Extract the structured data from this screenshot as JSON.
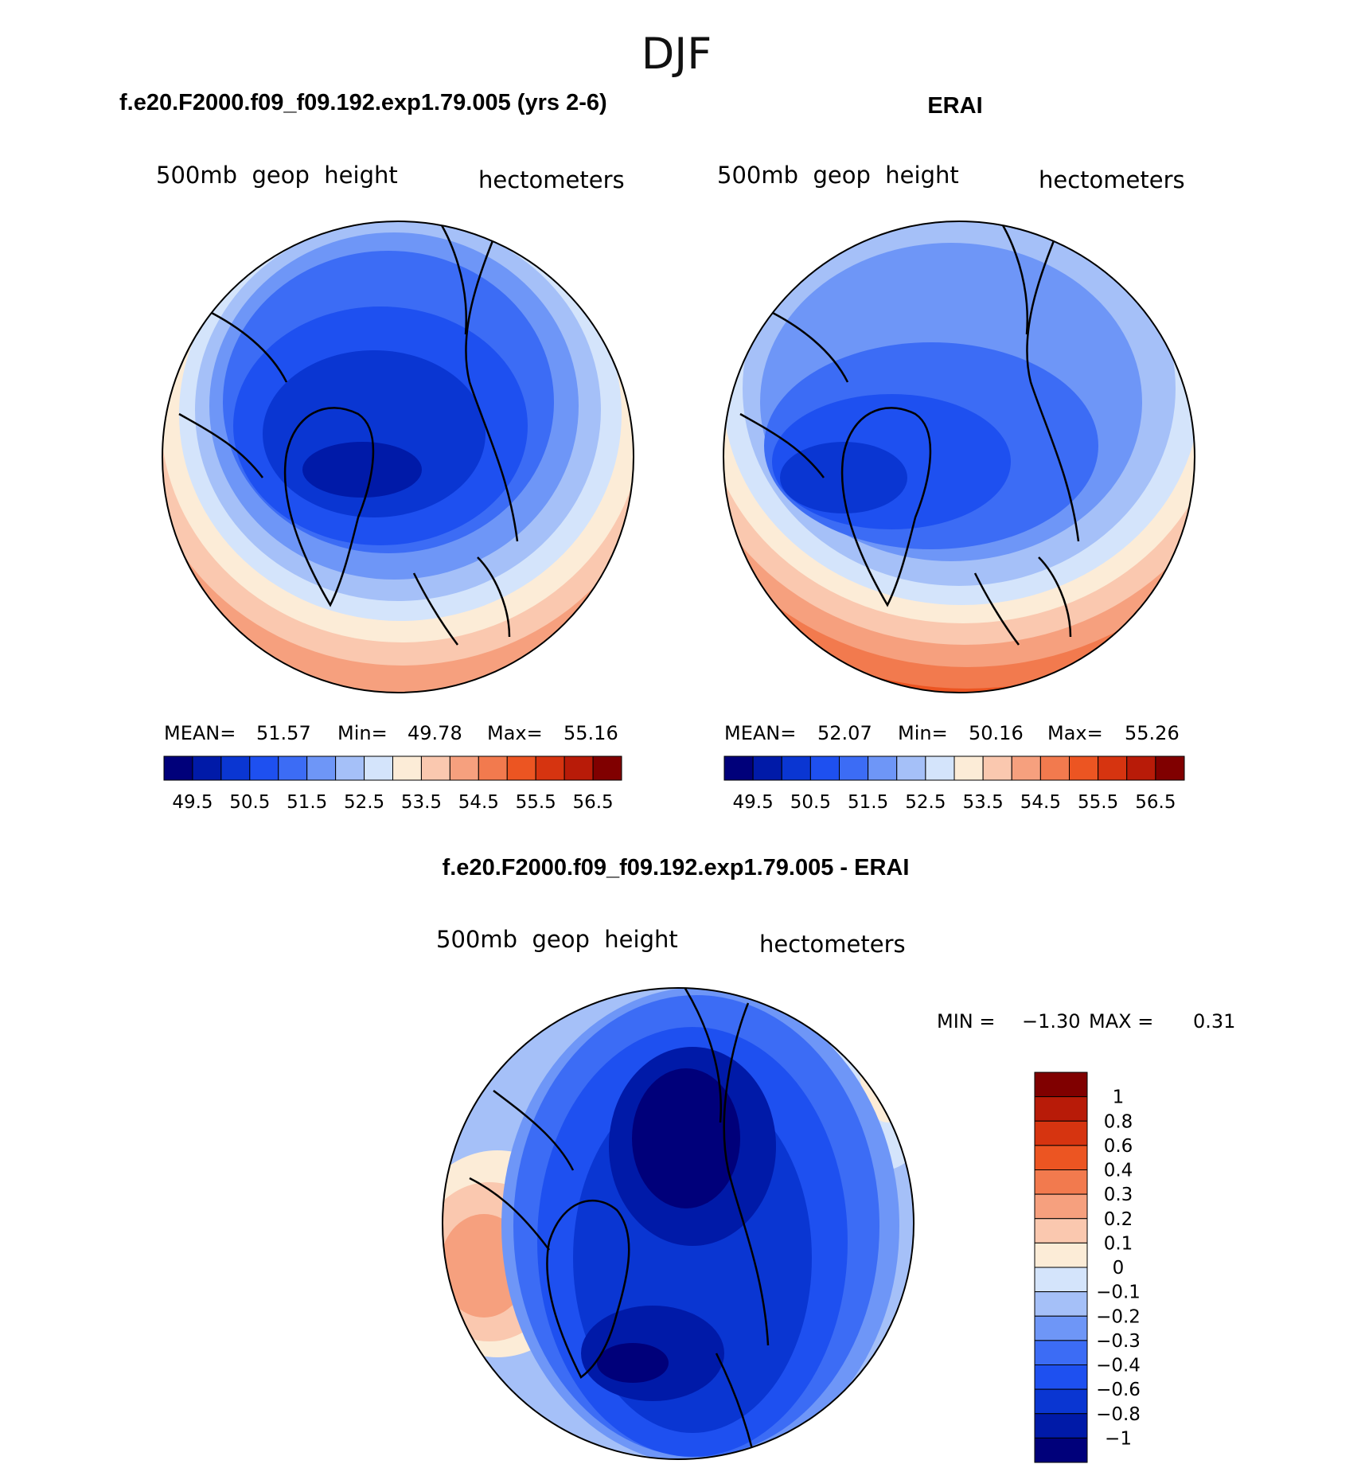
{
  "page": {
    "title": "DJF"
  },
  "chart_data": [
    {
      "type": "heatmap",
      "projection": "north polar stereographic",
      "title": "f.e20.F2000.f09_f09.192.exp1.79.005 (yrs 2-6)",
      "variable_label": "500mb  geop  height",
      "units_label": "hectometers",
      "stats": {
        "mean_label": "MEAN=",
        "mean": "51.57",
        "min_label": "Min=",
        "min": "49.78",
        "max_label": "Max=",
        "max": "55.16"
      },
      "colorbar_ticks": [
        "49.5",
        "50.5",
        "51.5",
        "52.5",
        "53.5",
        "54.5",
        "55.5",
        "56.5"
      ],
      "colorbar_levels": [
        49,
        49.5,
        50,
        50.5,
        51,
        51.5,
        52,
        52.5,
        53,
        53.5,
        54,
        54.5,
        55,
        55.5,
        56,
        56.5,
        57
      ]
    },
    {
      "type": "heatmap",
      "projection": "north polar stereographic",
      "title": "ERAI",
      "variable_label": "500mb  geop  height",
      "units_label": "hectometers",
      "stats": {
        "mean_label": "MEAN=",
        "mean": "52.07",
        "min_label": "Min=",
        "min": "50.16",
        "max_label": "Max=",
        "max": "55.26"
      },
      "colorbar_ticks": [
        "49.5",
        "50.5",
        "51.5",
        "52.5",
        "53.5",
        "54.5",
        "55.5",
        "56.5"
      ],
      "colorbar_levels": [
        49,
        49.5,
        50,
        50.5,
        51,
        51.5,
        52,
        52.5,
        53,
        53.5,
        54,
        54.5,
        55,
        55.5,
        56,
        56.5,
        57
      ]
    },
    {
      "type": "heatmap",
      "projection": "north polar stereographic",
      "title": "f.e20.F2000.f09_f09.192.exp1.79.005 - ERAI",
      "variable_label": "500mb  geop  height",
      "units_label": "hectometers",
      "stats": {
        "min_label": "MIN =",
        "min": "−1.30",
        "max_label": "MAX =",
        "max": "0.31"
      },
      "colorbar_ticks": [
        "1",
        "0.8",
        "0.6",
        "0.4",
        "0.3",
        "0.2",
        "0.1",
        "0",
        "−0.1",
        "−0.2",
        "−0.3",
        "−0.4",
        "−0.6",
        "−0.8",
        "−1"
      ]
    }
  ],
  "colors": {
    "scale16": [
      "#00007a",
      "#001aa8",
      "#0a36d2",
      "#1e50f0",
      "#3c6cf5",
      "#6e96f7",
      "#a5c0f8",
      "#d4e4fb",
      "#fcecd7",
      "#fac8af",
      "#f6a07e",
      "#f27a4e",
      "#ec5522",
      "#d63410",
      "#b81b08",
      "#800000"
    ],
    "diff_scale16": [
      "#00007a",
      "#001aa8",
      "#0a36d2",
      "#1e50f0",
      "#3c6cf5",
      "#6e96f7",
      "#a5c0f8",
      "#d4e4fb",
      "#fcecd7",
      "#fac8af",
      "#f6a07e",
      "#f27a4e",
      "#ec5522",
      "#d63410",
      "#b81b08",
      "#800000"
    ]
  }
}
